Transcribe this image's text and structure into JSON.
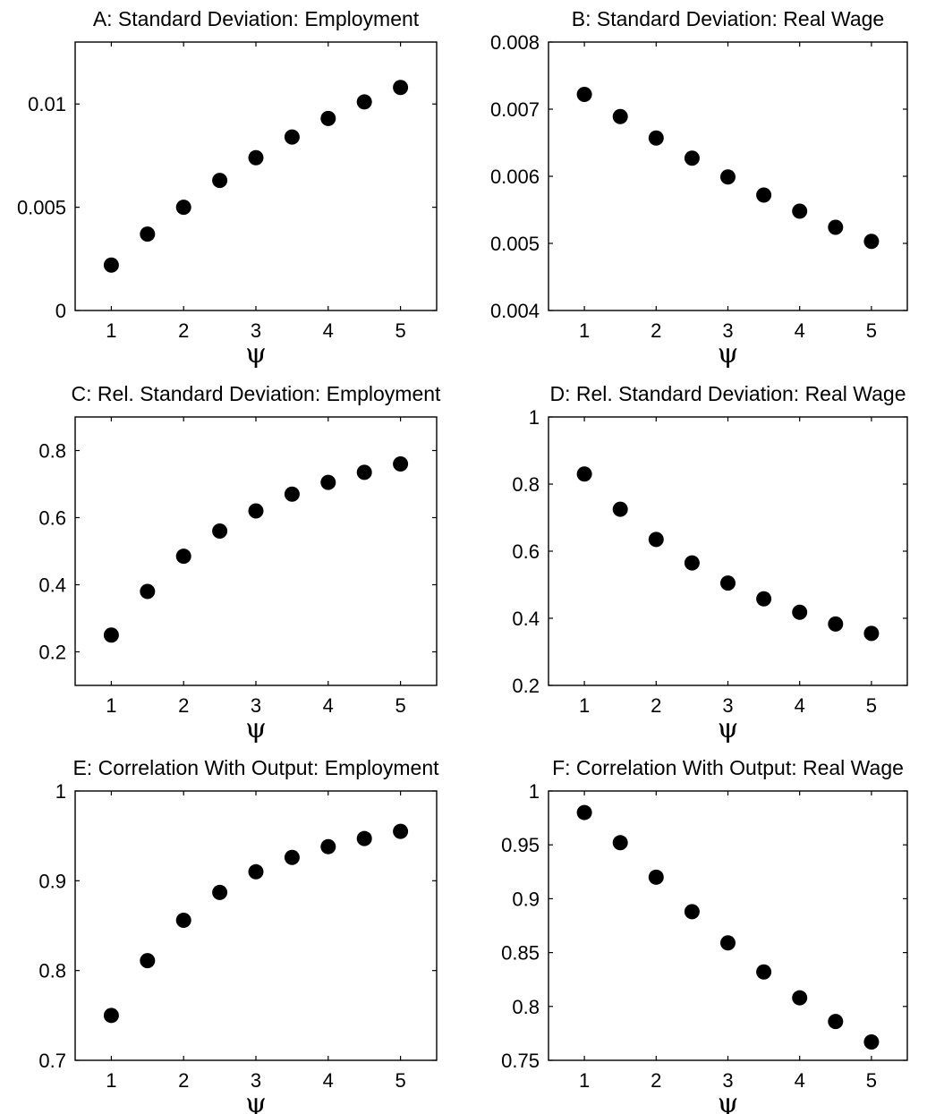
{
  "chart_data": [
    {
      "type": "scatter",
      "title": "A: Standard Deviation: Employment",
      "xlabel": "ψ",
      "ylabel": "",
      "x": [
        1,
        1.5,
        2,
        2.5,
        3,
        3.5,
        4,
        4.5,
        5
      ],
      "y": [
        0.0022,
        0.0037,
        0.005,
        0.0063,
        0.0074,
        0.0084,
        0.0093,
        0.0101,
        0.0108
      ],
      "xlim": [
        0.5,
        5.5
      ],
      "ylim": [
        0,
        0.013
      ],
      "xticks": [
        1,
        2,
        3,
        4,
        5
      ],
      "xtick_labels": [
        "1",
        "2",
        "3",
        "4",
        "5"
      ],
      "yticks": [
        0,
        0.005,
        0.01
      ],
      "ytick_labels": [
        "0",
        "0.005",
        "0.01"
      ],
      "grid": false,
      "marker": "filled-circle",
      "color": "#000000"
    },
    {
      "type": "scatter",
      "title": "B: Standard Deviation: Real Wage",
      "xlabel": "ψ",
      "ylabel": "",
      "x": [
        1,
        1.5,
        2,
        2.5,
        3,
        3.5,
        4,
        4.5,
        5
      ],
      "y": [
        0.00722,
        0.00689,
        0.00657,
        0.00627,
        0.00599,
        0.00572,
        0.00548,
        0.00524,
        0.00503
      ],
      "xlim": [
        0.5,
        5.5
      ],
      "ylim": [
        0.004,
        0.008
      ],
      "xticks": [
        1,
        2,
        3,
        4,
        5
      ],
      "xtick_labels": [
        "1",
        "2",
        "3",
        "4",
        "5"
      ],
      "yticks": [
        0.004,
        0.005,
        0.006,
        0.007,
        0.008
      ],
      "ytick_labels": [
        "0.004",
        "0.005",
        "0.006",
        "0.007",
        "0.008"
      ],
      "grid": false,
      "marker": "filled-circle",
      "color": "#000000"
    },
    {
      "type": "scatter",
      "title": "C: Rel. Standard Deviation: Employment",
      "xlabel": "ψ",
      "ylabel": "",
      "x": [
        1,
        1.5,
        2,
        2.5,
        3,
        3.5,
        4,
        4.5,
        5
      ],
      "y": [
        0.25,
        0.38,
        0.485,
        0.56,
        0.62,
        0.67,
        0.705,
        0.735,
        0.76
      ],
      "xlim": [
        0.5,
        5.5
      ],
      "ylim": [
        0.1,
        0.9
      ],
      "xticks": [
        1,
        2,
        3,
        4,
        5
      ],
      "xtick_labels": [
        "1",
        "2",
        "3",
        "4",
        "5"
      ],
      "yticks": [
        0.2,
        0.4,
        0.6,
        0.8
      ],
      "ytick_labels": [
        "0.2",
        "0.4",
        "0.6",
        "0.8"
      ],
      "grid": false,
      "marker": "filled-circle",
      "color": "#000000"
    },
    {
      "type": "scatter",
      "title": "D: Rel. Standard Deviation: Real Wage",
      "xlabel": "ψ",
      "ylabel": "",
      "x": [
        1,
        1.5,
        2,
        2.5,
        3,
        3.5,
        4,
        4.5,
        5
      ],
      "y": [
        0.83,
        0.725,
        0.635,
        0.565,
        0.505,
        0.458,
        0.418,
        0.383,
        0.355
      ],
      "xlim": [
        0.5,
        5.5
      ],
      "ylim": [
        0.2,
        1.0
      ],
      "xticks": [
        1,
        2,
        3,
        4,
        5
      ],
      "xtick_labels": [
        "1",
        "2",
        "3",
        "4",
        "5"
      ],
      "yticks": [
        0.2,
        0.4,
        0.6,
        0.8,
        1.0
      ],
      "ytick_labels": [
        "0.2",
        "0.4",
        "0.6",
        "0.8",
        "1"
      ],
      "grid": false,
      "marker": "filled-circle",
      "color": "#000000"
    },
    {
      "type": "scatter",
      "title": "E: Correlation With Output: Employment",
      "xlabel": "ψ",
      "ylabel": "",
      "x": [
        1,
        1.5,
        2,
        2.5,
        3,
        3.5,
        4,
        4.5,
        5
      ],
      "y": [
        0.75,
        0.811,
        0.856,
        0.887,
        0.91,
        0.926,
        0.938,
        0.947,
        0.955
      ],
      "xlim": [
        0.5,
        5.5
      ],
      "ylim": [
        0.7,
        1.0
      ],
      "xticks": [
        1,
        2,
        3,
        4,
        5
      ],
      "xtick_labels": [
        "1",
        "2",
        "3",
        "4",
        "5"
      ],
      "yticks": [
        0.7,
        0.8,
        0.9,
        1.0
      ],
      "ytick_labels": [
        "0.7",
        "0.8",
        "0.9",
        "1"
      ],
      "grid": false,
      "marker": "filled-circle",
      "color": "#000000"
    },
    {
      "type": "scatter",
      "title": "F: Correlation With Output: Real Wage",
      "xlabel": "ψ",
      "ylabel": "",
      "x": [
        1,
        1.5,
        2,
        2.5,
        3,
        3.5,
        4,
        4.5,
        5
      ],
      "y": [
        0.98,
        0.952,
        0.92,
        0.888,
        0.859,
        0.832,
        0.808,
        0.786,
        0.767
      ],
      "xlim": [
        0.5,
        5.5
      ],
      "ylim": [
        0.75,
        1.0
      ],
      "xticks": [
        1,
        2,
        3,
        4,
        5
      ],
      "xtick_labels": [
        "1",
        "2",
        "3",
        "4",
        "5"
      ],
      "yticks": [
        0.75,
        0.8,
        0.85,
        0.9,
        0.95,
        1.0
      ],
      "ytick_labels": [
        "0.75",
        "0.8",
        "0.85",
        "0.9",
        "0.95",
        "1"
      ],
      "grid": false,
      "marker": "filled-circle",
      "color": "#000000"
    }
  ]
}
